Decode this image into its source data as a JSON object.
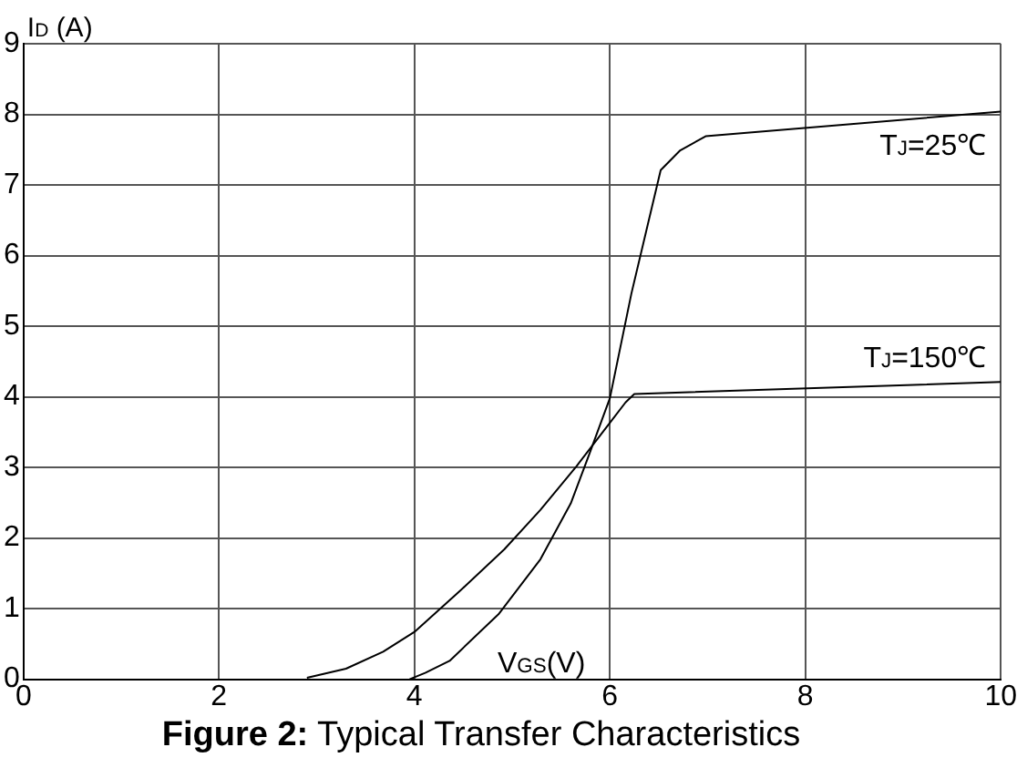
{
  "chart_data": {
    "type": "line",
    "title": "Figure 2: Typical Transfer Characteristics",
    "xlabel": "V$_{GS}$(V)",
    "ylabel": "I$_{D}$ (A)",
    "xlim": [
      0,
      10
    ],
    "xticks": [
      0,
      2,
      4,
      6,
      8,
      10
    ],
    "ylim": [
      0,
      9
    ],
    "yticks": [
      0,
      1,
      2,
      3,
      4,
      5,
      6,
      7,
      8,
      9
    ],
    "grid": true,
    "legend": false,
    "marker": "none",
    "line_style": "solid",
    "series": [
      {
        "name": "T$_{J}$=25℃",
        "color": "#000000",
        "x": [
          3.95,
          4.11,
          4.36,
          4.86,
          5.29,
          5.6,
          5.79,
          6.0,
          6.22,
          6.52,
          6.72,
          6.98,
          10
        ],
        "values": [
          0,
          0.09,
          0.26,
          0.92,
          1.7,
          2.49,
          3.19,
          3.98,
          5.46,
          7.21,
          7.49,
          7.69,
          8.04
        ]
      },
      {
        "name": "T$_{J}$=150℃",
        "color": "#000000",
        "x": [
          2.9,
          3.3,
          3.68,
          4.0,
          4.48,
          4.92,
          5.29,
          5.66,
          6.0,
          6.16,
          6.25,
          10
        ],
        "values": [
          0.02,
          0.15,
          0.39,
          0.67,
          1.27,
          1.84,
          2.4,
          3.02,
          3.63,
          3.92,
          4.04,
          4.21
        ]
      }
    ]
  }
}
